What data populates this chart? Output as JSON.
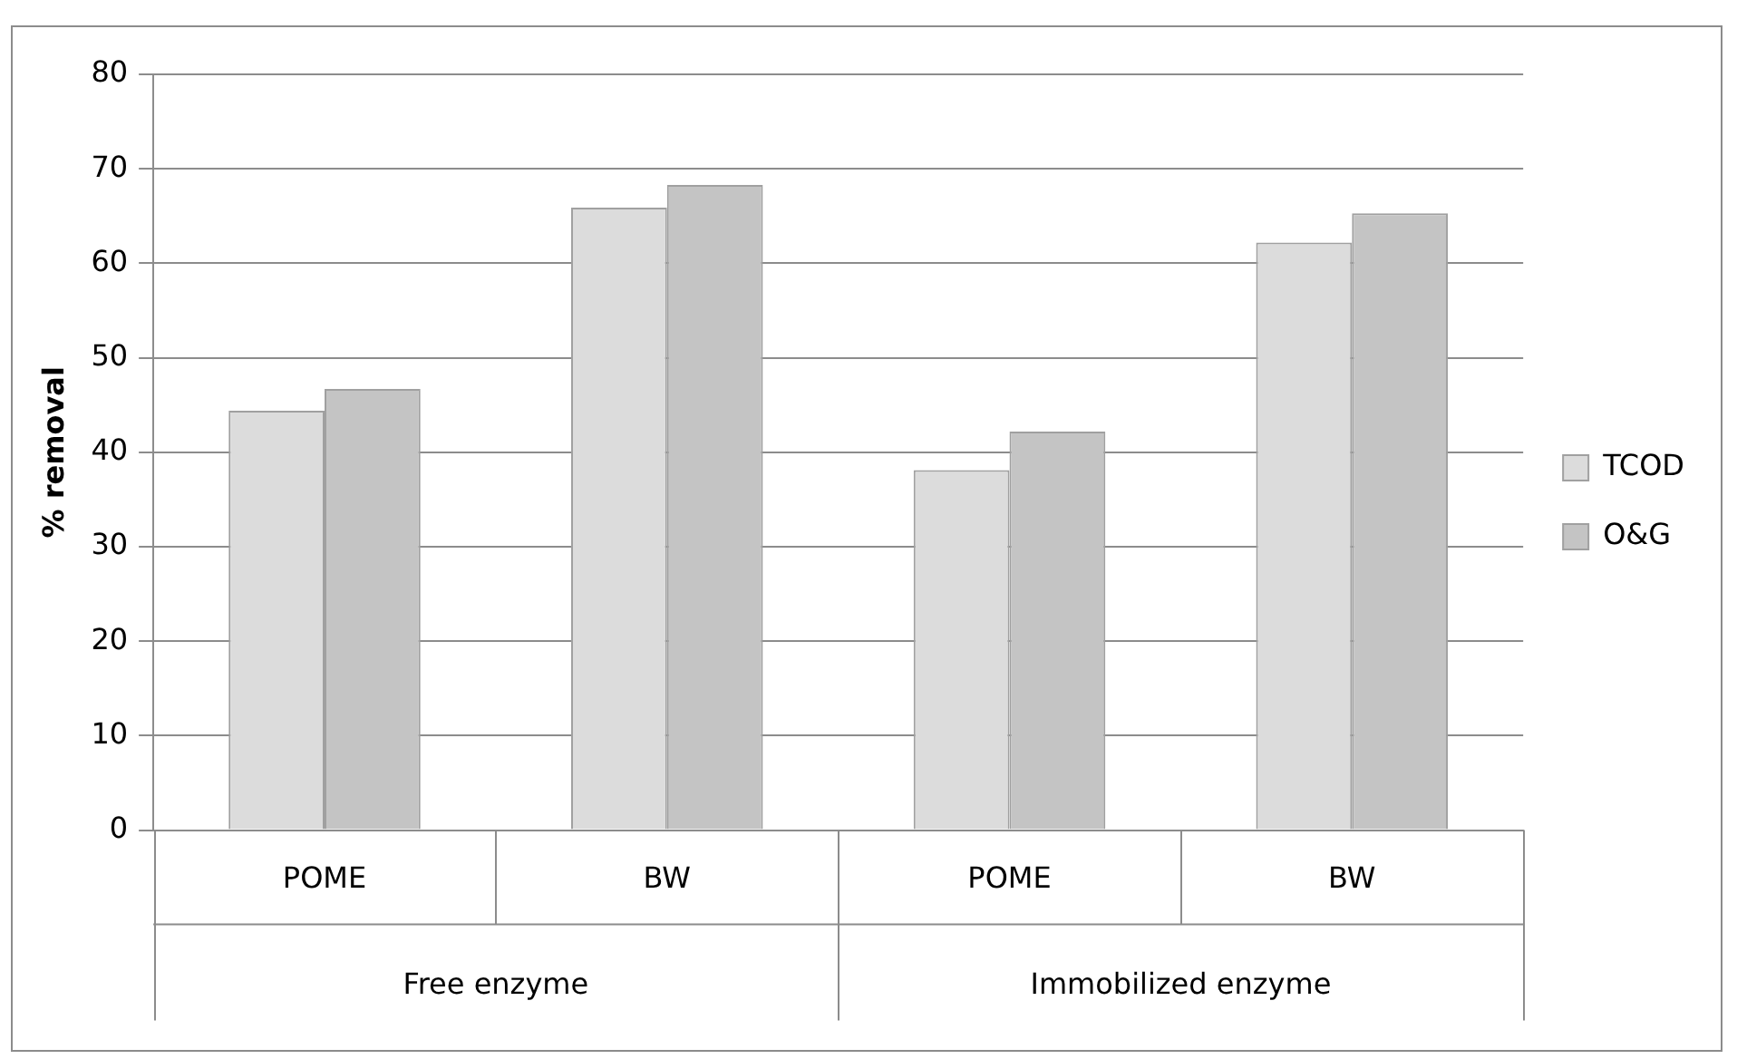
{
  "chart_data": {
    "type": "bar",
    "ylabel": "% removal",
    "categories": [
      "POME",
      "BW",
      "POME",
      "BW"
    ],
    "series": [
      {
        "name": "TCOD",
        "color": "#dcdcdc",
        "values": [
          44.4,
          65.9,
          38.1,
          62.2
        ]
      },
      {
        "name": "O&G",
        "color": "#c4c4c4",
        "values": [
          46.7,
          68.3,
          42.2,
          65.3
        ]
      }
    ],
    "annotations": [
      "Free enzyme",
      "Immobilized enzyme"
    ],
    "ylim": [
      0,
      80
    ],
    "yticks": [
      0,
      10,
      20,
      30,
      40,
      50,
      60,
      70,
      80
    ],
    "grid": "y",
    "legend": "right"
  }
}
